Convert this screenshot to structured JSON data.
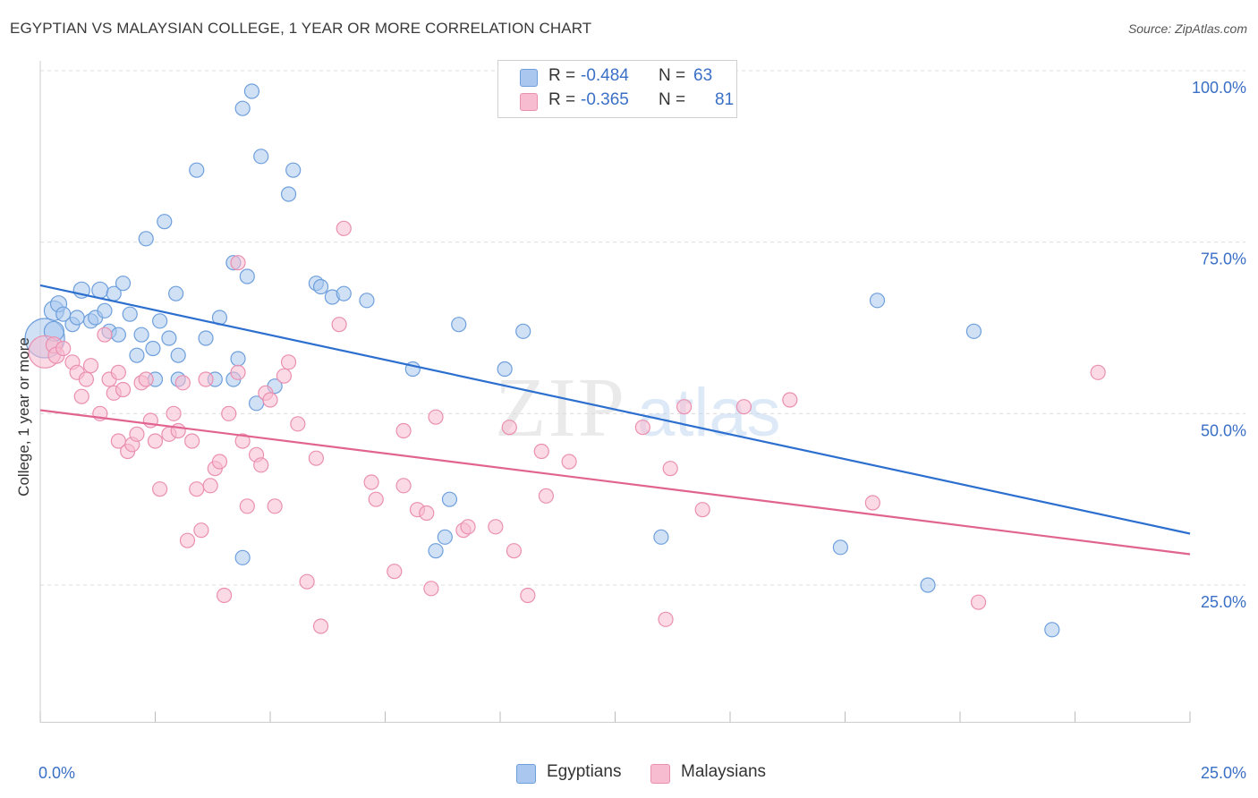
{
  "header": {
    "title": "EGYPTIAN VS MALAYSIAN COLLEGE, 1 YEAR OR MORE CORRELATION CHART",
    "source": "Source: ZipAtlas.com"
  },
  "watermark": {
    "zip": "ZIP",
    "atlas": "atlas"
  },
  "legend": {
    "r_label": "R =",
    "n_label": "N =",
    "rows": [
      {
        "r": "-0.484",
        "n": "63",
        "color": "#aac8ef"
      },
      {
        "r": "-0.365",
        "n": "81",
        "color": "#f7bcd0"
      }
    ]
  },
  "bottom_legend": [
    {
      "label": "Egyptians",
      "color": "#aac8ef"
    },
    {
      "label": "Malaysians",
      "color": "#f7bcd0"
    }
  ],
  "colors": {
    "egyptians_fill": "#aac8ef",
    "egyptians_stroke": "#6e9fdc",
    "egyptians_line": "#2c6fcf",
    "malaysians_fill": "#f7bcd0",
    "malaysians_stroke": "#ea8fb0",
    "malaysians_line": "#e0648f",
    "tick_label": "#3a6fc6",
    "grid": "#dcdcdc"
  },
  "chart_data": {
    "type": "scatter",
    "title": "EGYPTIAN VS MALAYSIAN COLLEGE, 1 YEAR OR MORE CORRELATION CHART",
    "xlabel": "",
    "ylabel": "College, 1 year or more",
    "xlim": [
      0,
      25
    ],
    "ylim": [
      5,
      105
    ],
    "x_tick_labels": [
      "0.0%",
      "25.0%"
    ],
    "y_ticks": [
      25,
      50,
      75,
      100
    ],
    "y_tick_labels": [
      "25.0%",
      "50.0%",
      "75.0%",
      "100.0%"
    ],
    "grid": true,
    "legend_position": "top-center",
    "series": [
      {
        "name": "Egyptians",
        "r": -0.484,
        "n": 63,
        "trend": {
          "x": [
            0,
            25
          ],
          "y": [
            68.7,
            32.5
          ]
        },
        "points": [
          {
            "x": 0.1,
            "y": 61,
            "s": 22
          },
          {
            "x": 0.3,
            "y": 62,
            "s": 11
          },
          {
            "x": 0.3,
            "y": 65,
            "s": 11
          },
          {
            "x": 0.4,
            "y": 66,
            "s": 9
          },
          {
            "x": 0.5,
            "y": 64.5,
            "s": 8
          },
          {
            "x": 0.7,
            "y": 63,
            "s": 8
          },
          {
            "x": 0.8,
            "y": 64,
            "s": 8
          },
          {
            "x": 0.9,
            "y": 68,
            "s": 9
          },
          {
            "x": 1.1,
            "y": 63.5,
            "s": 8
          },
          {
            "x": 1.2,
            "y": 64,
            "s": 8
          },
          {
            "x": 1.3,
            "y": 68,
            "s": 9
          },
          {
            "x": 1.4,
            "y": 65,
            "s": 8
          },
          {
            "x": 1.5,
            "y": 62,
            "s": 8
          },
          {
            "x": 1.6,
            "y": 67.5,
            "s": 8
          },
          {
            "x": 1.7,
            "y": 61.5,
            "s": 8
          },
          {
            "x": 1.8,
            "y": 69,
            "s": 8
          },
          {
            "x": 1.95,
            "y": 64.5,
            "s": 8
          },
          {
            "x": 2.1,
            "y": 58.5,
            "s": 8
          },
          {
            "x": 2.2,
            "y": 61.5,
            "s": 8
          },
          {
            "x": 2.3,
            "y": 75.5,
            "s": 8
          },
          {
            "x": 2.45,
            "y": 59.5,
            "s": 8
          },
          {
            "x": 2.5,
            "y": 55,
            "s": 8
          },
          {
            "x": 2.6,
            "y": 63.5,
            "s": 8
          },
          {
            "x": 2.7,
            "y": 78,
            "s": 8
          },
          {
            "x": 2.8,
            "y": 61,
            "s": 8
          },
          {
            "x": 2.95,
            "y": 67.5,
            "s": 8
          },
          {
            "x": 3.0,
            "y": 58.5,
            "s": 8
          },
          {
            "x": 3.0,
            "y": 55,
            "s": 8
          },
          {
            "x": 3.4,
            "y": 85.5,
            "s": 8
          },
          {
            "x": 3.6,
            "y": 61,
            "s": 8
          },
          {
            "x": 3.8,
            "y": 55,
            "s": 8
          },
          {
            "x": 3.9,
            "y": 64,
            "s": 8
          },
          {
            "x": 4.2,
            "y": 55,
            "s": 8
          },
          {
            "x": 4.2,
            "y": 72,
            "s": 8
          },
          {
            "x": 4.3,
            "y": 58,
            "s": 8
          },
          {
            "x": 4.4,
            "y": 94.5,
            "s": 8
          },
          {
            "x": 4.4,
            "y": 29,
            "s": 8
          },
          {
            "x": 4.5,
            "y": 70,
            "s": 8
          },
          {
            "x": 4.6,
            "y": 97,
            "s": 8
          },
          {
            "x": 4.7,
            "y": 51.5,
            "s": 8
          },
          {
            "x": 4.8,
            "y": 87.5,
            "s": 8
          },
          {
            "x": 5.1,
            "y": 54,
            "s": 8
          },
          {
            "x": 5.4,
            "y": 82,
            "s": 8
          },
          {
            "x": 5.5,
            "y": 85.5,
            "s": 8
          },
          {
            "x": 6.0,
            "y": 69,
            "s": 8
          },
          {
            "x": 6.1,
            "y": 68.5,
            "s": 8
          },
          {
            "x": 6.35,
            "y": 67,
            "s": 8
          },
          {
            "x": 6.6,
            "y": 67.5,
            "s": 8
          },
          {
            "x": 7.1,
            "y": 66.5,
            "s": 8
          },
          {
            "x": 8.1,
            "y": 56.5,
            "s": 8
          },
          {
            "x": 8.6,
            "y": 30,
            "s": 8
          },
          {
            "x": 8.8,
            "y": 32,
            "s": 8
          },
          {
            "x": 8.9,
            "y": 37.5,
            "s": 8
          },
          {
            "x": 9.1,
            "y": 63,
            "s": 8
          },
          {
            "x": 10.1,
            "y": 56.5,
            "s": 8
          },
          {
            "x": 10.5,
            "y": 62,
            "s": 8
          },
          {
            "x": 13.5,
            "y": 32,
            "s": 8
          },
          {
            "x": 17.4,
            "y": 30.5,
            "s": 8
          },
          {
            "x": 18.2,
            "y": 66.5,
            "s": 8
          },
          {
            "x": 19.3,
            "y": 25,
            "s": 8
          },
          {
            "x": 20.3,
            "y": 62,
            "s": 8
          },
          {
            "x": 22.0,
            "y": 18.5,
            "s": 8
          }
        ]
      },
      {
        "name": "Malaysians",
        "r": -0.365,
        "n": 81,
        "trend": {
          "x": [
            0,
            25
          ],
          "y": [
            50.5,
            29.5
          ]
        },
        "points": [
          {
            "x": 0.1,
            "y": 59,
            "s": 18
          },
          {
            "x": 0.3,
            "y": 60,
            "s": 9
          },
          {
            "x": 0.35,
            "y": 58.5,
            "s": 9
          },
          {
            "x": 0.5,
            "y": 59.5,
            "s": 8
          },
          {
            "x": 0.7,
            "y": 57.5,
            "s": 8
          },
          {
            "x": 0.8,
            "y": 56,
            "s": 8
          },
          {
            "x": 0.9,
            "y": 52.5,
            "s": 8
          },
          {
            "x": 1.0,
            "y": 55,
            "s": 8
          },
          {
            "x": 1.1,
            "y": 57,
            "s": 8
          },
          {
            "x": 1.3,
            "y": 50,
            "s": 8
          },
          {
            "x": 1.4,
            "y": 61.5,
            "s": 8
          },
          {
            "x": 1.5,
            "y": 55,
            "s": 8
          },
          {
            "x": 1.6,
            "y": 53,
            "s": 8
          },
          {
            "x": 1.7,
            "y": 46,
            "s": 8
          },
          {
            "x": 1.7,
            "y": 56,
            "s": 8
          },
          {
            "x": 1.8,
            "y": 53.5,
            "s": 8
          },
          {
            "x": 1.9,
            "y": 44.5,
            "s": 8
          },
          {
            "x": 2.0,
            "y": 45.5,
            "s": 8
          },
          {
            "x": 2.1,
            "y": 47,
            "s": 8
          },
          {
            "x": 2.2,
            "y": 54.5,
            "s": 8
          },
          {
            "x": 2.3,
            "y": 55,
            "s": 8
          },
          {
            "x": 2.4,
            "y": 49,
            "s": 8
          },
          {
            "x": 2.5,
            "y": 46,
            "s": 8
          },
          {
            "x": 2.6,
            "y": 39,
            "s": 8
          },
          {
            "x": 2.8,
            "y": 47,
            "s": 8
          },
          {
            "x": 2.9,
            "y": 50,
            "s": 8
          },
          {
            "x": 3.0,
            "y": 47.5,
            "s": 8
          },
          {
            "x": 3.1,
            "y": 54.5,
            "s": 8
          },
          {
            "x": 3.2,
            "y": 31.5,
            "s": 8
          },
          {
            "x": 3.3,
            "y": 46,
            "s": 8
          },
          {
            "x": 3.4,
            "y": 39,
            "s": 8
          },
          {
            "x": 3.5,
            "y": 33,
            "s": 8
          },
          {
            "x": 3.6,
            "y": 55,
            "s": 8
          },
          {
            "x": 3.7,
            "y": 39.5,
            "s": 8
          },
          {
            "x": 3.8,
            "y": 42,
            "s": 8
          },
          {
            "x": 3.9,
            "y": 43,
            "s": 8
          },
          {
            "x": 4.0,
            "y": 23.5,
            "s": 8
          },
          {
            "x": 4.1,
            "y": 50,
            "s": 8
          },
          {
            "x": 4.3,
            "y": 72,
            "s": 8
          },
          {
            "x": 4.3,
            "y": 56,
            "s": 8
          },
          {
            "x": 4.4,
            "y": 46,
            "s": 8
          },
          {
            "x": 4.5,
            "y": 36.5,
            "s": 8
          },
          {
            "x": 4.7,
            "y": 44,
            "s": 8
          },
          {
            "x": 4.8,
            "y": 42.5,
            "s": 8
          },
          {
            "x": 4.9,
            "y": 53,
            "s": 8
          },
          {
            "x": 5.0,
            "y": 52,
            "s": 8
          },
          {
            "x": 5.1,
            "y": 36.5,
            "s": 8
          },
          {
            "x": 5.3,
            "y": 55.5,
            "s": 8
          },
          {
            "x": 5.4,
            "y": 57.5,
            "s": 8
          },
          {
            "x": 5.6,
            "y": 48.5,
            "s": 8
          },
          {
            "x": 5.8,
            "y": 25.5,
            "s": 8
          },
          {
            "x": 6.0,
            "y": 43.5,
            "s": 8
          },
          {
            "x": 6.1,
            "y": 19,
            "s": 8
          },
          {
            "x": 6.5,
            "y": 63,
            "s": 8
          },
          {
            "x": 6.6,
            "y": 77,
            "s": 8
          },
          {
            "x": 7.2,
            "y": 40,
            "s": 8
          },
          {
            "x": 7.3,
            "y": 37.5,
            "s": 8
          },
          {
            "x": 7.7,
            "y": 27,
            "s": 8
          },
          {
            "x": 7.9,
            "y": 39.5,
            "s": 8
          },
          {
            "x": 7.9,
            "y": 47.5,
            "s": 8
          },
          {
            "x": 8.2,
            "y": 36,
            "s": 8
          },
          {
            "x": 8.4,
            "y": 35.5,
            "s": 8
          },
          {
            "x": 8.5,
            "y": 24.5,
            "s": 8
          },
          {
            "x": 8.6,
            "y": 49.5,
            "s": 8
          },
          {
            "x": 9.2,
            "y": 33,
            "s": 8
          },
          {
            "x": 9.3,
            "y": 33.5,
            "s": 8
          },
          {
            "x": 9.9,
            "y": 33.5,
            "s": 8
          },
          {
            "x": 10.2,
            "y": 48,
            "s": 8
          },
          {
            "x": 10.3,
            "y": 30,
            "s": 8
          },
          {
            "x": 10.6,
            "y": 23.5,
            "s": 8
          },
          {
            "x": 10.9,
            "y": 44.5,
            "s": 8
          },
          {
            "x": 11.0,
            "y": 38,
            "s": 8
          },
          {
            "x": 11.5,
            "y": 43,
            "s": 8
          },
          {
            "x": 13.1,
            "y": 48,
            "s": 8
          },
          {
            "x": 13.6,
            "y": 20,
            "s": 8
          },
          {
            "x": 13.7,
            "y": 42,
            "s": 8
          },
          {
            "x": 14.0,
            "y": 51,
            "s": 8
          },
          {
            "x": 14.4,
            "y": 36,
            "s": 8
          },
          {
            "x": 15.3,
            "y": 51,
            "s": 8
          },
          {
            "x": 16.3,
            "y": 52,
            "s": 8
          },
          {
            "x": 18.1,
            "y": 37,
            "s": 8
          },
          {
            "x": 20.4,
            "y": 22.5,
            "s": 8
          },
          {
            "x": 23.0,
            "y": 56,
            "s": 8
          }
        ]
      }
    ]
  }
}
